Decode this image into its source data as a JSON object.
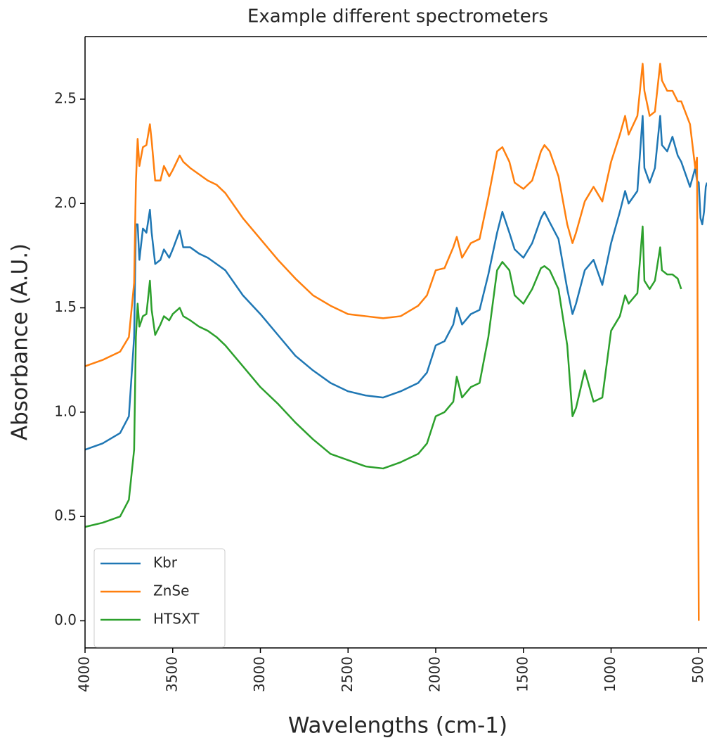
{
  "chart_data": {
    "type": "line",
    "title": "Example different spectrometers",
    "x_label": "Wavelengths (cm-1)",
    "y_label": "Absorbance (A.U.)",
    "x": [
      4000,
      3900,
      3800,
      3750,
      3720,
      3710,
      3700,
      3690,
      3670,
      3650,
      3630,
      3620,
      3600,
      3570,
      3550,
      3520,
      3500,
      3460,
      3440,
      3400,
      3350,
      3300,
      3250,
      3200,
      3100,
      3000,
      2900,
      2800,
      2700,
      2600,
      2500,
      2400,
      2300,
      2200,
      2100,
      2050,
      2000,
      1950,
      1900,
      1880,
      1850,
      1800,
      1750,
      1700,
      1650,
      1620,
      1580,
      1550,
      1500,
      1450,
      1400,
      1380,
      1350,
      1300,
      1250,
      1220,
      1200,
      1150,
      1100,
      1050,
      1000,
      950,
      920,
      900,
      850,
      820,
      810,
      780,
      750,
      720,
      710,
      680,
      650,
      620,
      600,
      550,
      520,
      510,
      500,
      490,
      480,
      470,
      460,
      453
    ],
    "series": [
      {
        "name": "Kbr",
        "color": "#1f77b4",
        "values": [
          0.82,
          0.85,
          0.9,
          0.98,
          1.36,
          1.9,
          1.9,
          1.73,
          1.88,
          1.86,
          1.97,
          1.86,
          1.71,
          1.73,
          1.78,
          1.74,
          1.78,
          1.87,
          1.79,
          1.79,
          1.76,
          1.74,
          1.71,
          1.68,
          1.56,
          1.47,
          1.37,
          1.27,
          1.2,
          1.14,
          1.1,
          1.08,
          1.07,
          1.1,
          1.14,
          1.19,
          1.32,
          1.34,
          1.42,
          1.5,
          1.42,
          1.47,
          1.49,
          1.66,
          1.86,
          1.96,
          1.86,
          1.78,
          1.74,
          1.81,
          1.93,
          1.96,
          1.91,
          1.83,
          1.59,
          1.47,
          1.52,
          1.68,
          1.73,
          1.61,
          1.81,
          1.96,
          2.06,
          2.0,
          2.06,
          2.42,
          2.17,
          2.1,
          2.17,
          2.42,
          2.28,
          2.25,
          2.32,
          2.23,
          2.2,
          2.08,
          2.17,
          2.11,
          2.1,
          1.93,
          1.9,
          1.96,
          2.08,
          2.1
        ]
      },
      {
        "name": "ZnSe",
        "color": "#ff7f0e",
        "values": [
          1.22,
          1.25,
          1.29,
          1.36,
          1.62,
          2.1,
          2.31,
          2.18,
          2.27,
          2.28,
          2.38,
          2.3,
          2.11,
          2.11,
          2.18,
          2.13,
          2.16,
          2.23,
          2.2,
          2.17,
          2.14,
          2.11,
          2.09,
          2.05,
          1.93,
          1.83,
          1.73,
          1.64,
          1.56,
          1.51,
          1.47,
          1.46,
          1.45,
          1.46,
          1.51,
          1.56,
          1.68,
          1.69,
          1.79,
          1.84,
          1.74,
          1.81,
          1.83,
          2.03,
          2.25,
          2.27,
          2.2,
          2.1,
          2.07,
          2.11,
          2.25,
          2.28,
          2.25,
          2.13,
          1.9,
          1.81,
          1.86,
          2.01,
          2.08,
          2.01,
          2.2,
          2.33,
          2.42,
          2.33,
          2.42,
          2.67,
          2.54,
          2.42,
          2.44,
          2.67,
          2.59,
          2.54,
          2.54,
          2.49,
          2.49,
          2.38,
          2.17,
          2.22,
          0.0,
          null,
          null,
          null,
          null,
          null
        ]
      },
      {
        "name": "HTSXT",
        "color": "#2ca02c",
        "values": [
          0.45,
          0.47,
          0.5,
          0.58,
          0.82,
          1.36,
          1.52,
          1.41,
          1.46,
          1.47,
          1.63,
          1.49,
          1.37,
          1.42,
          1.46,
          1.44,
          1.47,
          1.5,
          1.46,
          1.44,
          1.41,
          1.39,
          1.36,
          1.32,
          1.22,
          1.12,
          1.04,
          0.95,
          0.87,
          0.8,
          0.77,
          0.74,
          0.73,
          0.76,
          0.8,
          0.85,
          0.98,
          1.0,
          1.05,
          1.17,
          1.07,
          1.12,
          1.14,
          1.36,
          1.68,
          1.72,
          1.68,
          1.56,
          1.52,
          1.59,
          1.69,
          1.7,
          1.68,
          1.59,
          1.32,
          0.98,
          1.02,
          1.2,
          1.05,
          1.07,
          1.39,
          1.46,
          1.56,
          1.52,
          1.57,
          1.89,
          1.63,
          1.59,
          1.63,
          1.79,
          1.68,
          1.66,
          1.66,
          1.64,
          1.59,
          null,
          null,
          null,
          null,
          null,
          null,
          null,
          null,
          null
        ]
      }
    ],
    "xlim": [
      4000,
      453
    ],
    "ylim": [
      -0.13,
      2.8
    ],
    "xticks": [
      4000,
      3500,
      3000,
      2500,
      2000,
      1500,
      1000,
      500
    ],
    "yticks": [
      {
        "value": 0,
        "label": "0.0"
      },
      0.5,
      {
        "value": 1,
        "label": "1.0"
      },
      1.5,
      {
        "value": 2,
        "label": "2.0"
      },
      2.5
    ],
    "legend": "lower left"
  }
}
